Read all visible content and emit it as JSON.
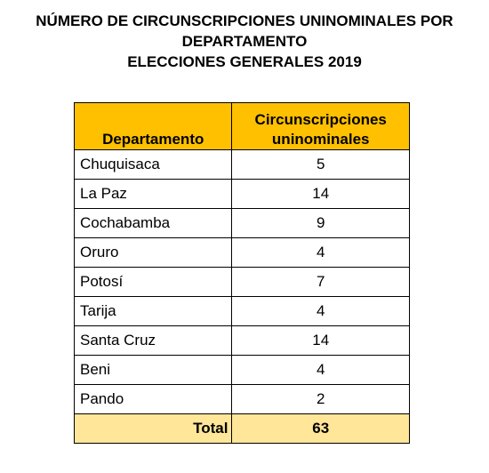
{
  "title": {
    "line1": "NÚMERO DE CIRCUNSCRIPCIONES UNINOMINALES POR",
    "line2": "DEPARTAMENTO",
    "line3": "ELECCIONES GENERALES 2019"
  },
  "table": {
    "headers": {
      "department": "Departamento",
      "circ_line1": "Circunscripciones",
      "circ_line2": "uninominales"
    },
    "rows": [
      {
        "department": "Chuquisaca",
        "value": "5"
      },
      {
        "department": "La Paz",
        "value": "14"
      },
      {
        "department": "Cochabamba",
        "value": "9"
      },
      {
        "department": "Oruro",
        "value": "4"
      },
      {
        "department": "Potosí",
        "value": "7"
      },
      {
        "department": "Tarija",
        "value": "4"
      },
      {
        "department": "Santa Cruz",
        "value": "14"
      },
      {
        "department": "Beni",
        "value": "4"
      },
      {
        "department": "Pando",
        "value": "2"
      }
    ],
    "total": {
      "label": "Total",
      "value": "63"
    }
  },
  "colors": {
    "header_fill": "#ffc000",
    "total_fill": "#ffe699"
  }
}
